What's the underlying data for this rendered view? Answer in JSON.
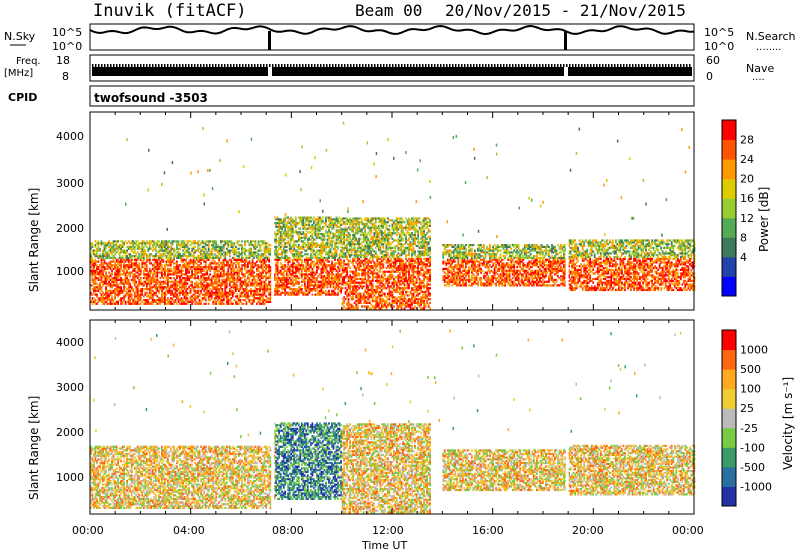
{
  "header": {
    "station": "Inuvik (fitACF)",
    "beam": "Beam 00",
    "date_range": "20/Nov/2015 - 21/Nov/2015"
  },
  "sky_panel": {
    "left_label": "N.Sky",
    "right_label": "N.Search",
    "left_ticks": [
      "10^5",
      "10^0"
    ],
    "right_ticks": [
      "10^5",
      "10^0"
    ],
    "right_legend_dots": "........"
  },
  "freq_panel": {
    "left_label_1": "Freq.",
    "left_label_2": "[MHz]",
    "left_ticks": [
      "18",
      "8"
    ],
    "right_label": "Nave",
    "right_ticks": [
      "60",
      "0"
    ],
    "right_legend_dots": "...."
  },
  "cpid": {
    "label": "CPID",
    "value": "twofsound -3503"
  },
  "power_panel": {
    "ylabel": "Slant Range [km]",
    "yticks": [
      "4000",
      "3000",
      "2000",
      "1000"
    ],
    "colorbar_label": "Power [dB]",
    "colorbar_ticks": [
      "28",
      "24",
      "20",
      "16",
      "12",
      "8",
      "4"
    ],
    "colors": [
      "#0000ff",
      "#2244aa",
      "#3b7a5a",
      "#55aa55",
      "#99cc33",
      "#ddcc00",
      "#ff9900",
      "#ff5500",
      "#ff0000"
    ]
  },
  "velocity_panel": {
    "ylabel": "Slant Range [km]",
    "yticks": [
      "4000",
      "3000",
      "2000",
      "1000"
    ],
    "colorbar_label": "Velocity [m s⁻¹]",
    "colorbar_ticks": [
      "1000",
      "500",
      "100",
      "25",
      "-25",
      "-100",
      "-500",
      "-1000"
    ],
    "colors": [
      "#2233aa",
      "#2a6fa0",
      "#3b9a6a",
      "#77cc44",
      "#bbbbbb",
      "#eecc33",
      "#ffaa22",
      "#ff6611",
      "#ff0000"
    ]
  },
  "x_axis": {
    "xlabel": "Time UT",
    "ticks": [
      "00:00",
      "04:00",
      "08:00",
      "12:00",
      "16:00",
      "20:00",
      "00:00"
    ]
  },
  "chart_data": {
    "type": "heatmap",
    "title": "Inuvik (fitACF)  Beam 00  20/Nov/2015 - 21/Nov/2015",
    "xlabel": "Time UT",
    "ylabel": "Slant Range [km]",
    "xlim": [
      "00:00",
      "00:00 (+1 day)"
    ],
    "ylim": [
      180,
      4500
    ],
    "data_gaps_hours": [
      7.2,
      18.9
    ],
    "power_colorbar": {
      "label": "Power [dB]",
      "range": [
        0,
        30
      ]
    },
    "velocity_colorbar": {
      "label": "Velocity [m s-1]",
      "range": [
        -1000,
        1000
      ]
    },
    "echo_regions_hours_km": [
      {
        "t_start": 0,
        "t_end": 7.2,
        "r_low": 300,
        "r_high": 1700
      },
      {
        "t_start": 7.3,
        "t_end": 10,
        "r_low": 500,
        "r_high": 2200
      },
      {
        "t_start": 10,
        "t_end": 13.5,
        "r_low": 200,
        "r_high": 2200
      },
      {
        "t_start": 14,
        "t_end": 18.9,
        "r_low": 700,
        "r_high": 1600
      },
      {
        "t_start": 19,
        "t_end": 24,
        "r_low": 600,
        "r_high": 1700
      }
    ]
  }
}
